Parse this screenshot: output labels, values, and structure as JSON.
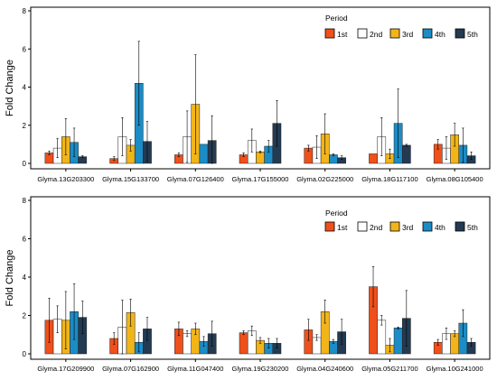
{
  "colors": {
    "1st": "#f0501b",
    "2nd": "#ffffff",
    "3rd": "#f2b519",
    "4th": "#1b8cc6",
    "5th": "#233a52",
    "bar_stroke": "#222222",
    "axis": "#000000"
  },
  "chart_data": [
    {
      "type": "bar",
      "ylabel": "Fold Change",
      "ylim": [
        0,
        8
      ],
      "yticks": [
        "0",
        "2",
        "4",
        "6",
        "8"
      ],
      "legend_title": "Period",
      "legend_position": "top-right",
      "categories": [
        "Glyma.13G203300",
        "Glyma.15G133700",
        "Glyma.07G126400",
        "Glyma.17G155000",
        "Glyma.02G225000",
        "Glyma.18G117100",
        "Glyma.08G105400"
      ],
      "series": [
        {
          "name": "1st",
          "values": [
            0.55,
            0.25,
            0.45,
            0.45,
            0.8,
            0.5,
            1.0
          ],
          "errors": [
            0.1,
            0.1,
            0.1,
            0.1,
            0.15,
            0.0,
            0.25
          ]
        },
        {
          "name": "2nd",
          "values": [
            0.8,
            1.4,
            1.4,
            1.2,
            0.85,
            1.4,
            0.8
          ],
          "errors": [
            0.5,
            1.0,
            1.35,
            0.6,
            0.6,
            1.0,
            0.6
          ]
        },
        {
          "name": "3rd",
          "values": [
            1.4,
            0.95,
            3.1,
            0.6,
            1.55,
            0.5,
            1.5
          ],
          "errors": [
            0.95,
            0.3,
            2.6,
            0.05,
            1.05,
            0.25,
            0.6
          ]
        },
        {
          "name": "4th",
          "values": [
            1.1,
            4.2,
            1.0,
            0.9,
            0.45,
            2.1,
            0.95
          ],
          "errors": [
            0.75,
            2.2,
            0.0,
            0.3,
            0.05,
            1.8,
            0.9
          ]
        },
        {
          "name": "5th",
          "values": [
            0.35,
            1.15,
            1.2,
            2.1,
            0.3,
            0.95,
            0.4
          ],
          "errors": [
            0.05,
            1.05,
            1.3,
            1.2,
            0.1,
            0.05,
            0.2
          ]
        }
      ]
    },
    {
      "type": "bar",
      "ylabel": "Fold Change",
      "ylim": [
        0,
        8
      ],
      "yticks": [
        "0",
        "2",
        "4",
        "6",
        "8"
      ],
      "legend_title": "Period",
      "legend_position": "top-right",
      "categories": [
        "Glyma.17G209900",
        "Glyma.07G162900",
        "Glyma.11G047400",
        "Glyma.19G230200",
        "Glyma.04G240600",
        "Glyma.05G211700",
        "Glyma.10G241000"
      ],
      "series": [
        {
          "name": "1st",
          "values": [
            1.75,
            0.8,
            1.3,
            1.1,
            1.25,
            3.5,
            0.6
          ],
          "errors": [
            1.15,
            0.3,
            0.35,
            0.1,
            0.55,
            1.05,
            0.15
          ]
        },
        {
          "name": "2nd",
          "values": [
            1.8,
            1.4,
            1.05,
            1.2,
            0.85,
            1.75,
            1.05
          ],
          "errors": [
            0.7,
            1.4,
            0.15,
            0.25,
            0.15,
            0.25,
            0.3
          ]
        },
        {
          "name": "3rd",
          "values": [
            1.75,
            2.15,
            1.3,
            0.7,
            2.2,
            0.45,
            1.05
          ],
          "errors": [
            1.5,
            0.7,
            0.3,
            0.15,
            0.6,
            0.35,
            0.15
          ]
        },
        {
          "name": "4th",
          "values": [
            2.2,
            0.6,
            0.65,
            0.55,
            0.65,
            1.35,
            1.6
          ],
          "errors": [
            1.45,
            0.5,
            0.25,
            0.25,
            0.1,
            0.05,
            0.7
          ]
        },
        {
          "name": "5th",
          "values": [
            1.9,
            1.3,
            1.05,
            0.55,
            1.15,
            1.85,
            0.6
          ],
          "errors": [
            0.85,
            0.6,
            0.65,
            0.25,
            0.65,
            1.45,
            0.2
          ]
        }
      ]
    }
  ]
}
